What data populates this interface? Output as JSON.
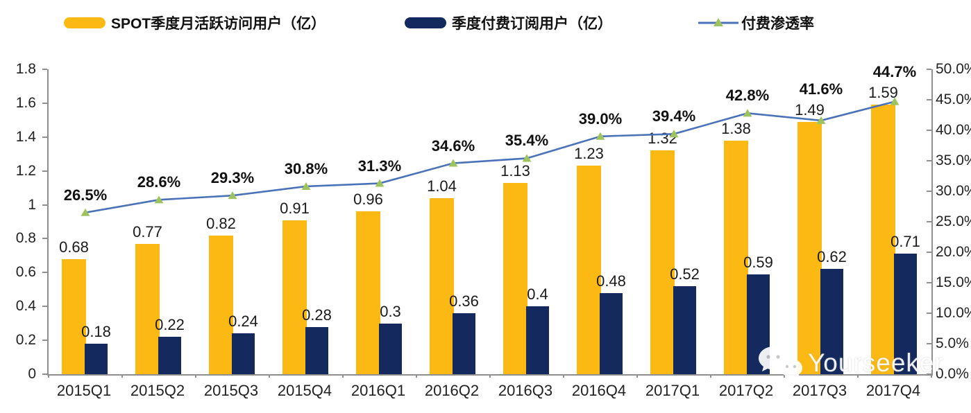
{
  "legend": [
    {
      "label": "SPOT季度月活跃访问用户（亿）",
      "type": "bar",
      "color": "#FDB913"
    },
    {
      "label": "季度付费订阅用户（亿）",
      "type": "bar",
      "color": "#142A5E"
    },
    {
      "label": "付费渗透率",
      "type": "line",
      "color": "#4A72B8",
      "marker_color": "#9DC360",
      "marker": "triangle-icon"
    }
  ],
  "watermark": {
    "text": "Yourseeker",
    "icon": "wechat-bubbles-icon"
  },
  "colors": {
    "mau_bar": "#FDB913",
    "subs_bar": "#142A5E",
    "penetration_line": "#4A72B8",
    "penetration_marker": "#9DC360",
    "axis": "#8f8f8f",
    "text": "#1a1a1a"
  },
  "chart_data": {
    "type": "bar",
    "subtype": "grouped bars + line on secondary axis",
    "categories": [
      "2015Q1",
      "2015Q2",
      "2015Q3",
      "2015Q4",
      "2016Q1",
      "2016Q2",
      "2016Q3",
      "2016Q4",
      "2017Q1",
      "2017Q2",
      "2017Q3",
      "2017Q4"
    ],
    "series": [
      {
        "name": "SPOT季度月活跃访问用户（亿）",
        "type": "bar",
        "axis": "left",
        "color": "#FDB913",
        "values": [
          0.68,
          0.77,
          0.82,
          0.91,
          0.96,
          1.04,
          1.13,
          1.23,
          1.32,
          1.38,
          1.49,
          1.59
        ],
        "labels": [
          "0.68",
          "0.77",
          "0.82",
          "0.91",
          "0.96",
          "1.04",
          "1.13",
          "1.23",
          "1.32",
          "1.38",
          "1.49",
          "1.59"
        ]
      },
      {
        "name": "季度付费订阅用户（亿）",
        "type": "bar",
        "axis": "left",
        "color": "#142A5E",
        "values": [
          0.18,
          0.22,
          0.24,
          0.28,
          0.3,
          0.36,
          0.4,
          0.48,
          0.52,
          0.59,
          0.62,
          0.71
        ],
        "labels": [
          "0.18",
          "0.22",
          "0.24",
          "0.28",
          "0.3",
          "0.36",
          "0.4",
          "0.48",
          "0.52",
          "0.59",
          "0.62",
          "0.71"
        ]
      },
      {
        "name": "付费渗透率",
        "type": "line",
        "axis": "right",
        "color": "#4A72B8",
        "marker_color": "#9DC360",
        "values": [
          26.5,
          28.6,
          29.3,
          30.8,
          31.3,
          34.6,
          35.4,
          39.0,
          39.4,
          42.8,
          41.6,
          44.7
        ],
        "labels": [
          "26.5%",
          "28.6%",
          "29.3%",
          "30.8%",
          "31.3%",
          "34.6%",
          "35.4%",
          "39.0%",
          "39.4%",
          "42.8%",
          "41.6%",
          "44.7%"
        ]
      }
    ],
    "left_axis": {
      "min": 0,
      "max": 1.8,
      "ticks": [
        "0",
        "0.2",
        "0.4",
        "0.6",
        "0.8",
        "1",
        "1.2",
        "1.4",
        "1.6",
        "1.8"
      ]
    },
    "right_axis": {
      "min": 0,
      "max": 50,
      "ticks": [
        "0.0%",
        "5.0%",
        "10.0%",
        "15.0%",
        "20.0%",
        "25.0%",
        "30.0%",
        "35.0%",
        "40.0%",
        "45.0%",
        "50.0%"
      ]
    },
    "grid": false,
    "legend_position": "top",
    "title": ""
  }
}
